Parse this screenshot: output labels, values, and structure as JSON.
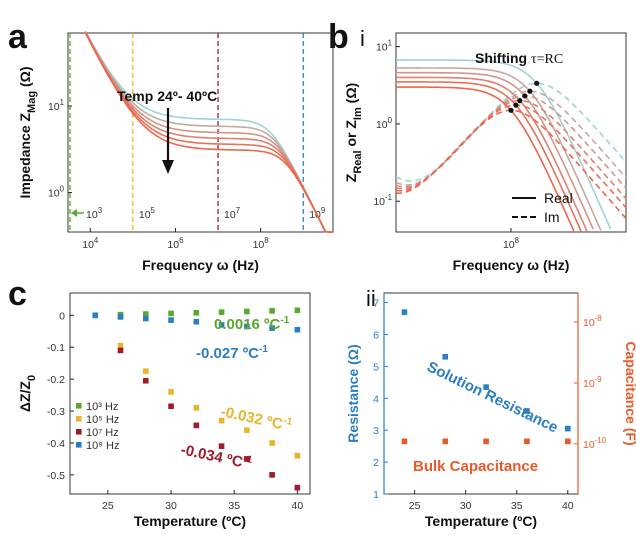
{
  "panels": {
    "a": "a",
    "b": "b",
    "b_i": "i",
    "b_ii": "ii",
    "c": "c"
  },
  "chart_data": [
    {
      "id": "a",
      "type": "line",
      "xlabel": "Frequency ω (Hz)",
      "ylabel": "Impedance Z",
      "ylabel_sub": "Mag",
      "ylabel_unit": " (Ω)",
      "xscale": "log",
      "yscale": "log",
      "xlim": [
        3000,
        5000000000
      ],
      "ylim": [
        0.35,
        70
      ],
      "x_ticks": [
        {
          "v": 10000,
          "base": "10",
          "exp": "4"
        },
        {
          "v": 1000000,
          "base": "10",
          "exp": "6"
        },
        {
          "v": 100000000,
          "base": "10",
          "exp": "8"
        }
      ],
      "y_ticks": [
        {
          "v": 1,
          "base": "10",
          "exp": "0"
        },
        {
          "v": 10,
          "base": "10",
          "exp": "1"
        }
      ],
      "annotation": "Temp 24º- 40ºC",
      "curves": [
        {
          "plateau": 7.0,
          "color": "#9fd4d6"
        },
        {
          "plateau": 5.8,
          "color": "#c4a9a2"
        },
        {
          "plateau": 4.9,
          "color": "#d4948a"
        },
        {
          "plateau": 4.2,
          "color": "#e08070"
        },
        {
          "plateau": 3.6,
          "color": "#e8705a"
        },
        {
          "plateau": 3.1,
          "color": "#ee6548"
        }
      ],
      "markers": [
        {
          "x": 3000,
          "base": "10",
          "exp": "3",
          "color": "#5aa832"
        },
        {
          "x": 100000,
          "base": "10",
          "exp": "5",
          "color": "#e8b52a"
        },
        {
          "x": 10000000,
          "base": "10",
          "exp": "7",
          "color": "#a11a2a"
        },
        {
          "x": 1000000000,
          "base": "10",
          "exp": "9",
          "color": "#2a7ec6"
        }
      ]
    },
    {
      "id": "b-i",
      "type": "line",
      "xlabel": "Frequency ω (Hz)",
      "ylabel": "Z",
      "ylabel_sub1": "Real",
      "ylabel_mid": " or Z",
      "ylabel_sub2": "Im",
      "ylabel_unit": " (Ω)",
      "xscale": "log",
      "yscale": "log",
      "xlim": [
        2000000,
        5000000000
      ],
      "ylim": [
        0.04,
        15
      ],
      "x_ticks": [
        {
          "v": 100000000,
          "base": "10",
          "exp": "8"
        }
      ],
      "y_ticks": [
        {
          "v": 0.1,
          "base": "10",
          "exp": "-1"
        },
        {
          "v": 1,
          "base": "10",
          "exp": "0"
        },
        {
          "v": 10,
          "base": "10",
          "exp": "1"
        }
      ],
      "annotation_bold": "Shifting ",
      "annotation_serif": "τ=RC",
      "legend": [
        {
          "label": "Real",
          "style": "solid"
        },
        {
          "label": "Im",
          "style": "dashed"
        }
      ],
      "series": [
        {
          "R": 6.7,
          "fc": 240000000,
          "color": "#9fd4d6"
        },
        {
          "R": 5.3,
          "fc": 190000000,
          "color": "#c4a9a2"
        },
        {
          "R": 4.6,
          "fc": 160000000,
          "color": "#d4948a"
        },
        {
          "R": 4.0,
          "fc": 135000000,
          "color": "#e08070"
        },
        {
          "R": 3.5,
          "fc": 118000000,
          "color": "#e8705a"
        },
        {
          "R": 3.0,
          "fc": 100000000,
          "color": "#ee6548"
        }
      ]
    },
    {
      "id": "c",
      "type": "scatter",
      "xlabel": "Temperature (ºC)",
      "ylabel": "ΔZ/Z",
      "ylabel_sub": "0",
      "xlim": [
        22,
        41
      ],
      "ylim": [
        -0.56,
        0.07
      ],
      "x_ticks": [
        25,
        30,
        35,
        40
      ],
      "y_ticks": [
        {
          "v": 0,
          "label": "0"
        },
        {
          "v": -0.1,
          "label": "-0.1"
        },
        {
          "v": -0.2,
          "label": "-0.2"
        },
        {
          "v": -0.3,
          "label": "-0.3"
        },
        {
          "v": -0.4,
          "label": "-0.4"
        },
        {
          "v": -0.5,
          "label": "-0.5"
        }
      ],
      "series": [
        {
          "name": "10³ Hz",
          "color": "#5aa832",
          "x": [
            24,
            26,
            28,
            30,
            32,
            34,
            36,
            38,
            40
          ],
          "y": [
            0.0,
            0.002,
            0.004,
            0.006,
            0.008,
            0.01,
            0.012,
            0.014,
            0.016
          ]
        },
        {
          "name": "10⁵ Hz",
          "color": "#e8b52a",
          "x": [
            26,
            28,
            30,
            32,
            34,
            36,
            38,
            40
          ],
          "y": [
            -0.095,
            -0.175,
            -0.24,
            -0.29,
            -0.33,
            -0.36,
            -0.4,
            -0.44
          ]
        },
        {
          "name": "10⁷ Hz",
          "color": "#a11a2a",
          "x": [
            26,
            28,
            30,
            32,
            34,
            36,
            38,
            40
          ],
          "y": [
            -0.11,
            -0.205,
            -0.285,
            -0.345,
            -0.41,
            -0.45,
            -0.5,
            -0.54
          ]
        },
        {
          "name": "10⁹ Hz",
          "color": "#2a7ec6",
          "x": [
            24,
            26,
            28,
            30,
            32,
            34,
            36,
            38,
            40
          ],
          "y": [
            0.0,
            -0.005,
            -0.01,
            -0.015,
            -0.02,
            -0.03,
            -0.035,
            -0.04,
            -0.045
          ]
        }
      ],
      "annotations": [
        {
          "text": "0.0016 ºC",
          "sup": "-1",
          "color": "#5aa832"
        },
        {
          "text": "-0.027 ºC",
          "sup": "-1",
          "color": "#2a7ec6"
        },
        {
          "text": "-0.032 ºC",
          "sup": "-1",
          "color": "#e8b52a"
        },
        {
          "text": "-0.034 ºC",
          "sup": "-1",
          "color": "#a11a2a"
        }
      ]
    },
    {
      "id": "b-ii",
      "type": "scatter",
      "xlabel": "Temperature (ºC)",
      "ylabel_left": "Resistance (Ω)",
      "ylabel_right": "Capacitance (F)",
      "xlim": [
        22,
        41
      ],
      "ylim_left": [
        1,
        7.3
      ],
      "ylim_right": [
        1.5e-11,
        3e-08
      ],
      "x_ticks": [
        25,
        30,
        35,
        40
      ],
      "y_ticks_left": [
        1,
        2,
        3,
        4,
        5,
        6,
        7
      ],
      "y_ticks_right": [
        {
          "v": 1e-10,
          "base": "10",
          "exp": "-10"
        },
        {
          "v": 1e-09,
          "base": "10",
          "exp": "-9"
        },
        {
          "v": 1e-08,
          "base": "10",
          "exp": "-8"
        }
      ],
      "left_color": "#2a7ec6",
      "right_color": "#e85a2a",
      "series": [
        {
          "name": "Solution Resistance",
          "axis": "left",
          "color": "#2a7ec6",
          "x": [
            24,
            28,
            32,
            36,
            40
          ],
          "y": [
            6.7,
            5.3,
            4.35,
            3.6,
            3.05
          ]
        },
        {
          "name": "Bulk Capacitance",
          "axis": "right",
          "color": "#e85a2a",
          "x": [
            24,
            28,
            32,
            36,
            40
          ],
          "y": [
            1.1e-10,
            1.1e-10,
            1.1e-10,
            1.1e-10,
            1.1e-10
          ]
        }
      ]
    }
  ]
}
